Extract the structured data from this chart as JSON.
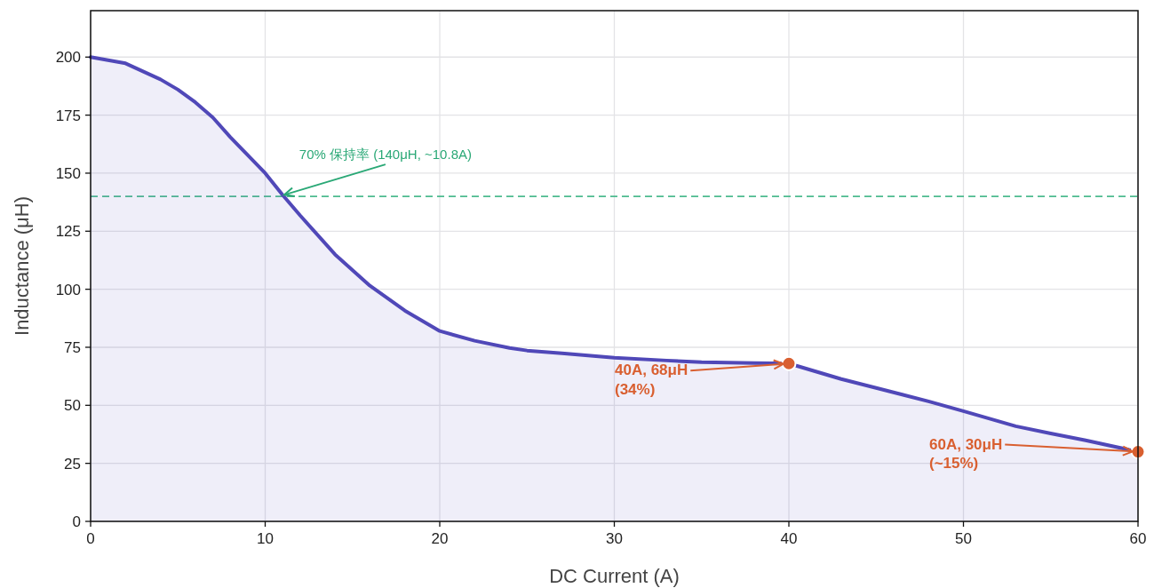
{
  "chart_data": {
    "type": "area",
    "xlabel": "DC Current (A)",
    "ylabel": "Inductance (μH)",
    "xlim": [
      0,
      60
    ],
    "ylim": [
      0,
      220
    ],
    "xticks": [
      0,
      10,
      20,
      30,
      40,
      50,
      60
    ],
    "yticks": [
      0,
      25,
      50,
      75,
      100,
      125,
      150,
      175,
      200
    ],
    "grid": true,
    "series": [
      {
        "type": "area",
        "color": "#5048b8",
        "x": [
          0,
          2,
          4,
          5,
          6,
          7,
          8,
          10,
          11,
          12,
          14,
          16,
          18,
          20,
          22,
          24,
          25,
          27,
          30,
          33,
          35,
          38,
          40,
          43,
          45,
          48,
          50,
          53,
          55,
          57,
          60
        ],
        "values": [
          200,
          197.3,
          190.4,
          186,
          180.5,
          174,
          165.5,
          150,
          140.6,
          131.8,
          115,
          101.5,
          90.8,
          82,
          77.8,
          74.7,
          73.6,
          72.4,
          70.5,
          69.3,
          68.6,
          68.2,
          68,
          61.3,
          57.5,
          51.7,
          47.5,
          41,
          37.9,
          34.9,
          30
        ]
      },
      {
        "type": "scatter",
        "color": "#d95f30",
        "marker": "circle",
        "x": [
          40,
          60
        ],
        "values": [
          68,
          30
        ]
      }
    ],
    "ref_lines": [
      {
        "axis": "y",
        "value": 140,
        "color": "#4dbb8f",
        "line_style": "dashed"
      }
    ],
    "annotations": [
      {
        "text": "70% 保持率 (140μH, ~10.8A)",
        "x": 10.8,
        "y": 140
      },
      {
        "text": "40A, 68μH\n(34%)",
        "x": 40,
        "y": 68
      },
      {
        "text": "60A, 30μH\n(~15%)",
        "x": 60,
        "y": 30
      }
    ]
  }
}
